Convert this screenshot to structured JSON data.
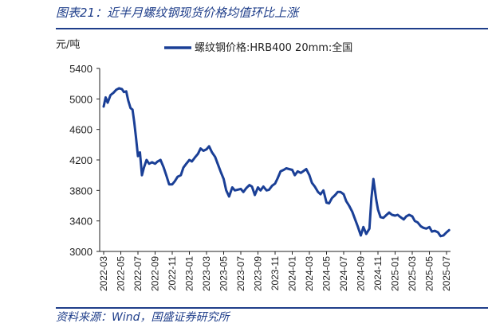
{
  "figure_title": "图表21：近半月螺纹钢现货价格均值环比上涨",
  "source": "资料来源：Wind，国盛证券研究所",
  "colors": {
    "accent": "#1f3e8a",
    "series": "#1a3f96"
  },
  "chart_data": {
    "type": "line",
    "title": "",
    "ylabel": "元/吨",
    "xlabel": "",
    "ylim": [
      3000,
      5400
    ],
    "yticks": [
      3000,
      3400,
      3800,
      4200,
      4600,
      5000,
      5400
    ],
    "xticks": [
      "2022-03",
      "2022-05",
      "2022-07",
      "2022-09",
      "2022-11",
      "2023-01",
      "2023-03",
      "2023-05",
      "2023-07",
      "2023-09",
      "2023-11",
      "2024-01",
      "2024-03",
      "2024-05",
      "2024-07",
      "2024-09",
      "2024-11",
      "2025-01",
      "2025-03",
      "2025-05",
      "2025-07"
    ],
    "legend_position": "top",
    "grid": false,
    "series": [
      {
        "name": "螺纹钢价格:HRB400 20mm:全国",
        "x": [
          "2022-03-01",
          "2022-03-08",
          "2022-03-15",
          "2022-03-25",
          "2022-04-05",
          "2022-04-15",
          "2022-04-25",
          "2022-05-05",
          "2022-05-12",
          "2022-05-20",
          "2022-05-27",
          "2022-06-05",
          "2022-06-12",
          "2022-06-18",
          "2022-06-24",
          "2022-07-01",
          "2022-07-08",
          "2022-07-15",
          "2022-07-22",
          "2022-08-01",
          "2022-08-10",
          "2022-08-20",
          "2022-09-01",
          "2022-09-10",
          "2022-09-20",
          "2022-10-01",
          "2022-10-10",
          "2022-10-20",
          "2022-11-01",
          "2022-11-10",
          "2022-11-20",
          "2022-12-01",
          "2022-12-10",
          "2022-12-20",
          "2023-01-01",
          "2023-01-10",
          "2023-01-20",
          "2023-02-01",
          "2023-02-10",
          "2023-02-20",
          "2023-03-01",
          "2023-03-10",
          "2023-03-20",
          "2023-04-01",
          "2023-04-10",
          "2023-04-20",
          "2023-05-01",
          "2023-05-10",
          "2023-05-20",
          "2023-06-01",
          "2023-06-10",
          "2023-06-20",
          "2023-07-01",
          "2023-07-10",
          "2023-07-20",
          "2023-08-01",
          "2023-08-10",
          "2023-08-20",
          "2023-09-01",
          "2023-09-10",
          "2023-09-20",
          "2023-10-01",
          "2023-10-10",
          "2023-10-20",
          "2023-11-01",
          "2023-11-10",
          "2023-11-20",
          "2023-12-01",
          "2023-12-10",
          "2023-12-20",
          "2024-01-01",
          "2024-01-10",
          "2024-01-20",
          "2024-02-01",
          "2024-02-20",
          "2024-03-01",
          "2024-03-10",
          "2024-03-20",
          "2024-04-01",
          "2024-04-10",
          "2024-04-20",
          "2024-05-01",
          "2024-05-10",
          "2024-05-20",
          "2024-06-01",
          "2024-06-10",
          "2024-06-20",
          "2024-07-01",
          "2024-07-10",
          "2024-07-20",
          "2024-08-01",
          "2024-08-10",
          "2024-08-20",
          "2024-09-01",
          "2024-09-10",
          "2024-09-20",
          "2024-10-01",
          "2024-10-08",
          "2024-10-15",
          "2024-10-25",
          "2024-11-01",
          "2024-11-10",
          "2024-11-20",
          "2024-12-01",
          "2024-12-10",
          "2024-12-20",
          "2025-01-01",
          "2025-01-10",
          "2025-01-20",
          "2025-02-01",
          "2025-02-10",
          "2025-02-20",
          "2025-03-01",
          "2025-03-10",
          "2025-03-20",
          "2025-04-01",
          "2025-04-10",
          "2025-04-20",
          "2025-05-01",
          "2025-05-10",
          "2025-05-20",
          "2025-06-01",
          "2025-06-10",
          "2025-06-20",
          "2025-07-01",
          "2025-07-10"
        ],
        "values": [
          4900,
          5020,
          4950,
          5050,
          5080,
          5120,
          5140,
          5130,
          5090,
          5100,
          4980,
          4880,
          4860,
          4700,
          4500,
          4250,
          4300,
          4000,
          4100,
          4200,
          4150,
          4170,
          4150,
          4180,
          4200,
          4100,
          4000,
          3880,
          3880,
          3920,
          3980,
          4000,
          4100,
          4150,
          4200,
          4180,
          4230,
          4280,
          4350,
          4320,
          4340,
          4380,
          4300,
          4240,
          4150,
          4050,
          3950,
          3800,
          3720,
          3840,
          3800,
          3810,
          3820,
          3780,
          3830,
          3870,
          3850,
          3740,
          3840,
          3800,
          3850,
          3800,
          3810,
          3860,
          3890,
          3960,
          4050,
          4070,
          4090,
          4080,
          4070,
          4000,
          4050,
          4030,
          4080,
          4000,
          3900,
          3850,
          3780,
          3750,
          3800,
          3640,
          3630,
          3700,
          3740,
          3780,
          3780,
          3750,
          3660,
          3600,
          3520,
          3430,
          3330,
          3210,
          3320,
          3230,
          3300,
          3700,
          3950,
          3680,
          3550,
          3450,
          3440,
          3480,
          3510,
          3480,
          3470,
          3480,
          3450,
          3420,
          3460,
          3480,
          3460,
          3400,
          3380,
          3330,
          3310,
          3300,
          3320,
          3260,
          3270,
          3250,
          3200,
          3210,
          3250,
          3280
        ]
      }
    ]
  }
}
